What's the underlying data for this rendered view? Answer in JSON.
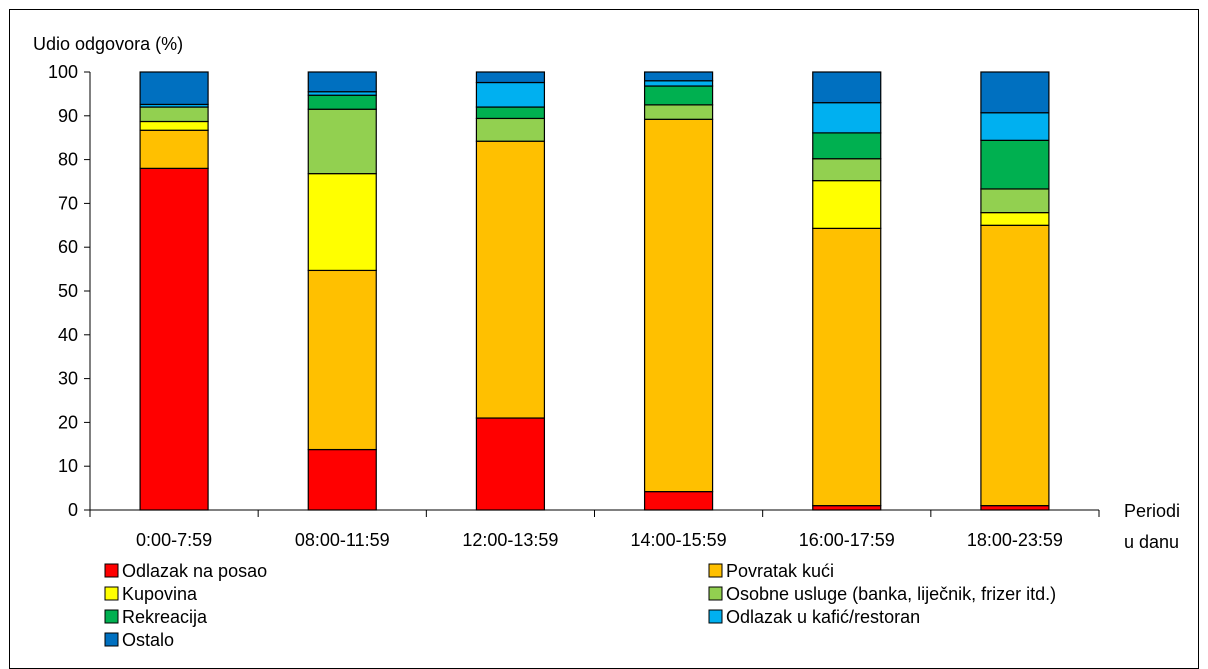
{
  "chart_data": {
    "type": "bar",
    "stacked": true,
    "ylabel": "Udio odgovora (%)",
    "xlabel_lines": [
      "Periodi",
      "u danu"
    ],
    "ylim": [
      0,
      100
    ],
    "yticks": [
      0,
      10,
      20,
      30,
      40,
      50,
      60,
      70,
      80,
      90,
      100
    ],
    "grid": false,
    "legend_position": "bottom",
    "categories": [
      "0:00-7:59",
      "08:00-11:59",
      "12:00-13:59",
      "14:00-15:59",
      "16:00-17:59",
      "18:00-23:59"
    ],
    "series": [
      {
        "name": "Odlazak na posao",
        "color": "#ff0000",
        "values": [
          78.0,
          13.8,
          21.0,
          4.2,
          1.0,
          1.0
        ]
      },
      {
        "name": "Povratak kući",
        "color": "#ffc000",
        "values": [
          8.7,
          40.9,
          63.2,
          85.0,
          63.3,
          64.0
        ]
      },
      {
        "name": "Kupovina",
        "color": "#ffff00",
        "values": [
          2.0,
          22.1,
          0.0,
          0.0,
          10.9,
          2.9
        ]
      },
      {
        "name": "Osobne usluge (banka, liječnik, frizer itd.)",
        "color": "#92d050",
        "values": [
          3.3,
          14.7,
          5.2,
          3.3,
          5.0,
          5.4
        ]
      },
      {
        "name": "Rekreacija",
        "color": "#00b050",
        "values": [
          0.0,
          3.2,
          2.6,
          4.3,
          5.9,
          11.1
        ]
      },
      {
        "name": "Odlazak u kafić/restoran",
        "color": "#00b0f0",
        "values": [
          0.6,
          0.8,
          5.6,
          1.2,
          6.9,
          6.3
        ]
      },
      {
        "name": "Ostalo",
        "color": "#0070c0",
        "values": [
          7.4,
          4.5,
          2.4,
          2.0,
          7.0,
          9.3
        ]
      }
    ]
  }
}
